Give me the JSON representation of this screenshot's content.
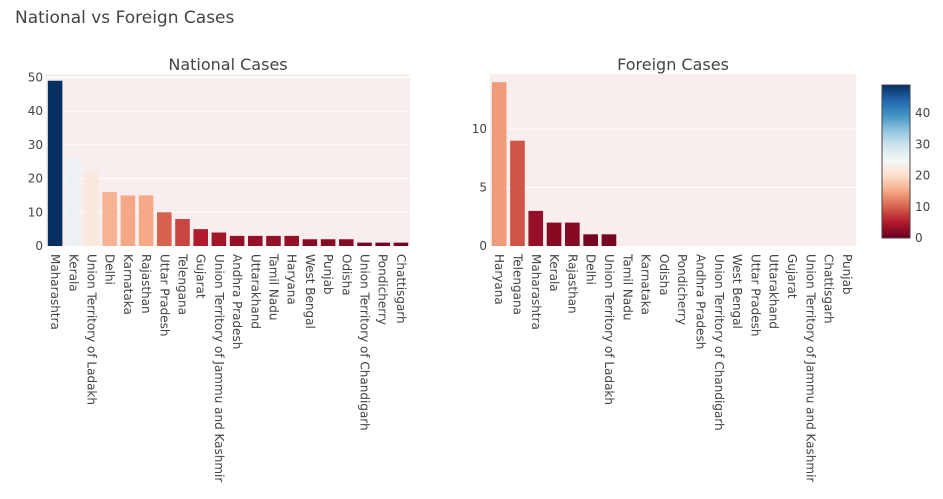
{
  "title": "National vs Foreign Cases",
  "colorbar": {
    "ticks": [
      0,
      10,
      20,
      30,
      40
    ],
    "range": [
      0,
      49
    ]
  },
  "chart_data": [
    {
      "type": "bar",
      "title": "National Cases",
      "categories": [
        "Maharashtra",
        "Kerala",
        "Union Territory of Ladakh",
        "Delhi",
        "Karnataka",
        "Rajasthan",
        "Uttar Pradesh",
        "Telengana",
        "Gujarat",
        "Union Territory of Jammu and Kashmir",
        "Andhra Pradesh",
        "Uttarakhand",
        "Tamil Nadu",
        "Haryana",
        "West Bengal",
        "Punjab",
        "Odisha",
        "Union Territory of Chandigarh",
        "Pondicherry",
        "Chattisgarh"
      ],
      "values": [
        49,
        26,
        22,
        16,
        15,
        15,
        10,
        8,
        5,
        4,
        3,
        3,
        3,
        3,
        2,
        2,
        2,
        1,
        1,
        1
      ],
      "ylim": [
        0,
        51
      ],
      "yticks": [
        0,
        10,
        20,
        30,
        40,
        50
      ],
      "grid": true
    },
    {
      "type": "bar",
      "title": "Foreign Cases",
      "categories": [
        "Haryana",
        "Telengana",
        "Maharashtra",
        "Kerala",
        "Rajasthan",
        "Delhi",
        "Union Territory of Ladakh",
        "Tamil Nadu",
        "Karnataka",
        "Odisha",
        "Pondicherry",
        "Andhra Pradesh",
        "Union Territory of Chandigarh",
        "West Bengal",
        "Uttar Pradesh",
        "Uttarakhand",
        "Gujarat",
        "Union Territory of Jammu and Kashmir",
        "Chattisgarh",
        "Punjab"
      ],
      "values": [
        14,
        9,
        3,
        2,
        2,
        1,
        1,
        0,
        0,
        0,
        0,
        0,
        0,
        0,
        0,
        0,
        0,
        0,
        0,
        0
      ],
      "ylim": [
        0,
        14.7
      ],
      "yticks": [
        0,
        5,
        10
      ],
      "grid": true
    }
  ]
}
